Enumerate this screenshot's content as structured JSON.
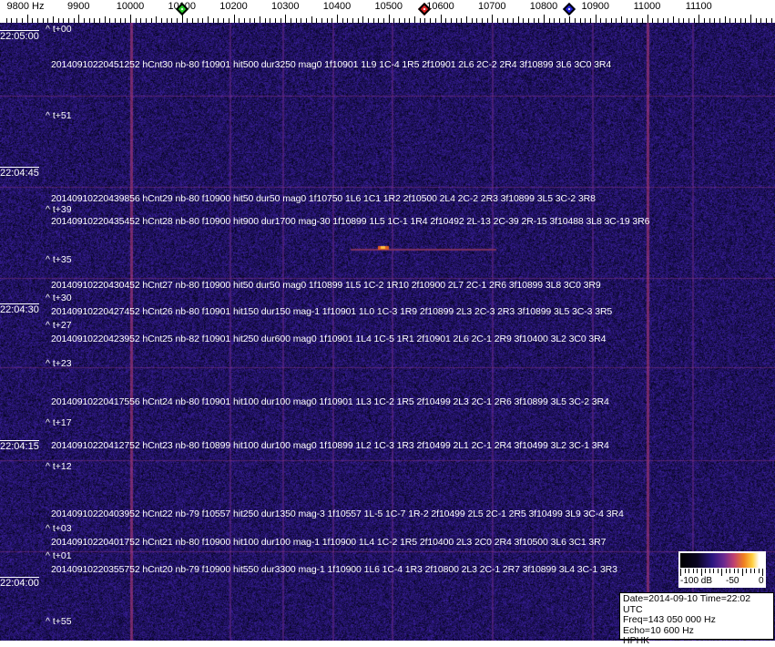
{
  "axis": {
    "unit_label": "9800 Hz",
    "labels": [
      "9900",
      "10000",
      "10100",
      "10200",
      "10300",
      "10400",
      "10500",
      "10600",
      "10700",
      "10800",
      "10900",
      "11000",
      "11100"
    ],
    "markers": [
      {
        "name": "green",
        "freq_hz": 10100,
        "color": "#22cc22"
      },
      {
        "name": "red",
        "freq_hz": 10570,
        "color": "#dd2020"
      },
      {
        "name": "blue",
        "freq_hz": 10850,
        "color": "#2020dd"
      }
    ]
  },
  "waterfall": {
    "colors": {
      "background": "#1b1466",
      "line": "#a0307a",
      "signal": "#ff9020"
    },
    "time_labels": [
      "22:05:00",
      "22:04:45",
      "22:04:30",
      "22:04:15",
      "22:04:00"
    ],
    "offset_labels": [
      "^ t+00",
      "^ t+51",
      "^ t+39",
      "^ t+35",
      "^ t+30",
      "^ t+27",
      "^ t+23",
      "^ t+17",
      "^ t+12",
      "^ t+03",
      "^ t+01",
      "^ t+55"
    ],
    "detections": [
      "20140910220451252 hCnt30 nb-80 f10901 hit500 dur3250 mag0 1f10901 1L9 1C-4 1R5 2f10901 2L6 2C-2 2R4 3f10899 3L6 3C0 3R4",
      "20140910220439856 hCnt29 nb-80 f10900 hit50 dur50 mag0 1f10750 1L6 1C1 1R2 2f10500 2L4 2C-2 2R3 3f10899 3L5 3C-2 3R8",
      "20140910220435452 hCnt28 nb-80 f10900 hit900 dur1700 mag-30 1f10899 1L5 1C-1 1R4 2f10492 2L-13 2C-39 2R-15 3f10488 3L8 3C-19 3R6",
      "20140910220430452 hCnt27 nb-80 f10900 hit50 dur50 mag0 1f10899 1L5 1C-2 1R10 2f10900 2L7 2C-1 2R6 3f10899 3L8 3C0 3R9",
      "20140910220427452 hCnt26 nb-80 f10901 hit150 dur150 mag-1 1f10901 1L0 1C-3 1R9 2f10899 2L3 2C-3 2R3 3f10899 3L5 3C-3 3R5",
      "20140910220423952 hCnt25 nb-82 f10901 hit250 dur600 mag0 1f10901 1L4 1C-5 1R1 2f10901 2L6 2C-1 2R9 3f10400 3L2 3C0 3R4",
      "20140910220417556 hCnt24 nb-80 f10901 hit100 dur100 mag0 1f10901 1L3 1C-2 1R5 2f10499 2L3 2C-1 2R6 3f10899 3L5 3C-2 3R4",
      "20140910220412752 hCnt23 nb-80 f10899 hit100 dur100 mag0 1f10899 1L2 1C-3 1R3 2f10499 2L1 2C-1 2R4 3f10499 3L2 3C-1 3R4",
      "20140910220403952 hCnt22 nb-79 f10557 hit250 dur1350 mag-3 1f10557 1L-5 1C-7 1R-2 2f10499 2L5 2C-1 2R5 3f10499 3L9 3C-4 3R4",
      "20140910220401752 hCnt21 nb-80 f10900 hit100 dur100 mag-1 1f10900 1L4 1C-2 1R5 2f10400 2L3 2C0 2R4 3f10500 3L6 3C1 3R7",
      "20140910220355752 hCnt20 nb-79 f10900 hit550 dur3300 mag-1 1f10900 1L6 1C-4 1R3 2f10800 2L3 2C-1 2R7 3f10899 3L4 3C-1 3R3"
    ]
  },
  "scale": {
    "labels": [
      "-100 dB",
      "-50",
      "0"
    ]
  },
  "info": {
    "line1": "Date=2014-09-10 Time=22:02 UTC",
    "line2": "Freq=143 050 000 Hz",
    "line3": "Echo=10 600 Hz",
    "line4": "HPHK"
  }
}
